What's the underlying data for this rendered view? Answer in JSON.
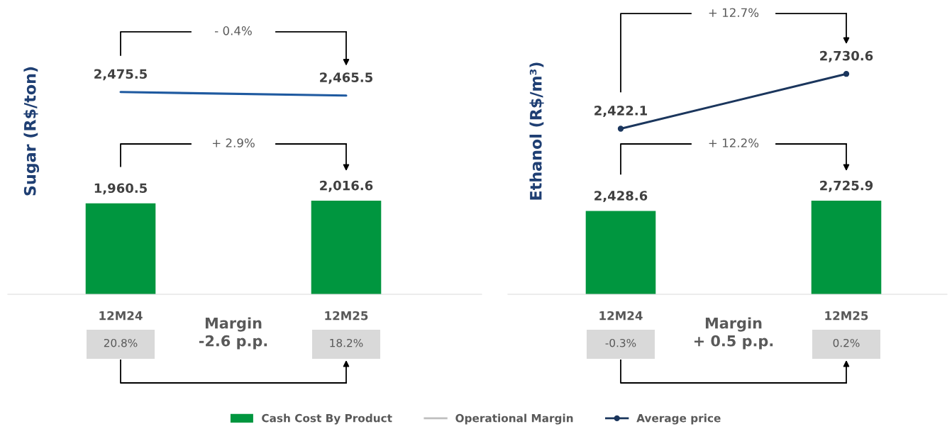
{
  "chart_data": [
    {
      "type": "line",
      "categories": [
        null,
        null
      ],
      "tick_labels": false,
      "series": [
        {
          "color": "#1f5aa0",
          "values": [
            2475.5,
            2465.5
          ],
          "value_labels": [
            "2,475.5",
            "2,465.5"
          ]
        }
      ],
      "annotations": [
        "- 0.4%"
      ]
    },
    {
      "type": "bar",
      "ylabel": "Sugar (R$/ton)",
      "categories": [
        "12M24",
        "12M25"
      ],
      "tick_labels": "x",
      "series": [
        {
          "color": "#00963f",
          "values": [
            1960.5,
            2016.6
          ],
          "value_labels": [
            "1,960.5",
            "2,016.6"
          ]
        },
        {
          "type": "line",
          "color": "#bfbfbf",
          "values": [
            null,
            null
          ]
        }
      ],
      "annotations": [
        "+ 2.9%",
        "Margin\n-2.6 p.p.",
        "20.8%",
        "18.2%"
      ]
    },
    {
      "type": "line",
      "categories": [
        null,
        null
      ],
      "tick_labels": false,
      "legend": "bottom",
      "marker": "circle",
      "series": [
        {
          "name": "Average price",
          "color": "#1b365d",
          "values": [
            2422.1,
            2730.6
          ],
          "value_labels": [
            "2,422.1",
            "2,730.6"
          ]
        }
      ],
      "annotations": [
        "+ 12.7%"
      ]
    },
    {
      "type": "bar",
      "ylabel": "Ethanol (R$/m³)",
      "categories": [
        "12M24",
        "12M25"
      ],
      "tick_labels": "x",
      "legend": "bottom",
      "series": [
        {
          "name": "Cash Cost By Product",
          "color": "#00963f",
          "values": [
            2428.6,
            2725.9
          ],
          "value_labels": [
            "2,428.6",
            "2,725.9"
          ]
        },
        {
          "name": "Operational Margin",
          "type": "line",
          "color": "#bfbfbf",
          "values": [
            null,
            null
          ]
        }
      ],
      "annotations": [
        "+ 12.2%",
        "Margin\n+ 0.5 p.p.",
        "-0.3%",
        "0.2%"
      ]
    }
  ]
}
